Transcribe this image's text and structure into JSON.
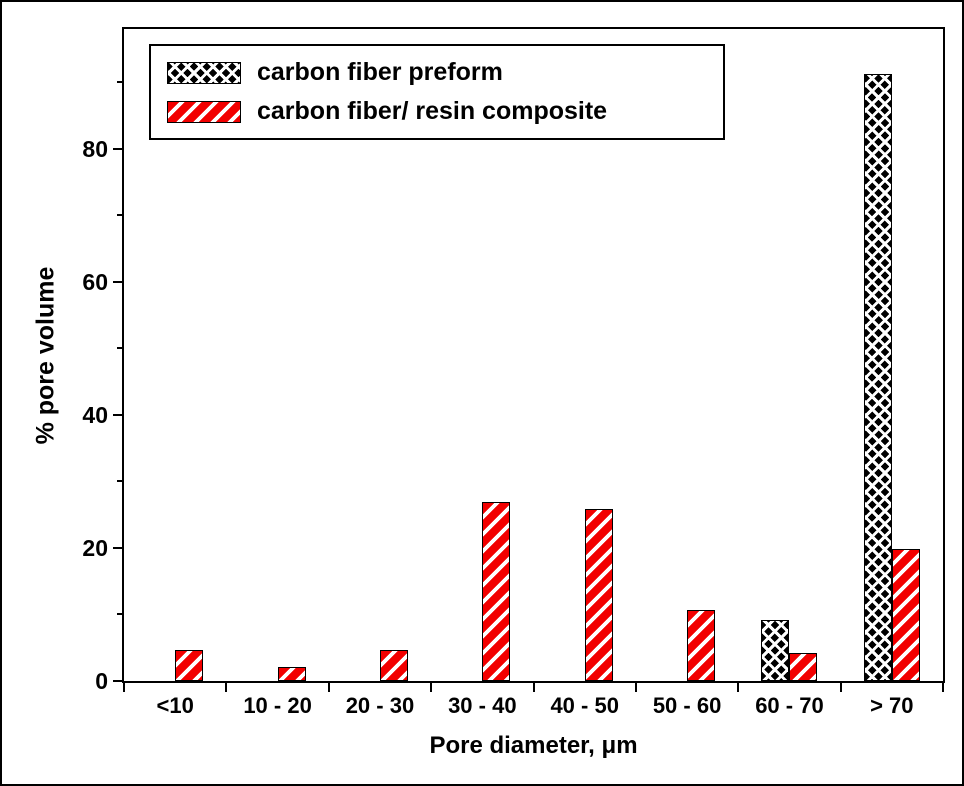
{
  "chart_data": {
    "type": "bar",
    "title": "",
    "xlabel": "Pore diameter, μm",
    "ylabel": "% pore volume",
    "categories": [
      "<10",
      "10 - 20",
      "20 - 30",
      "30 - 40",
      "40 - 50",
      "50 - 60",
      "60 - 70",
      "> 70"
    ],
    "series": [
      {
        "name": "carbon fiber preform",
        "color": "#000000",
        "hatch": "crosshatch",
        "values": [
          0,
          0,
          0,
          0,
          0,
          0,
          9.2,
          91.3
        ]
      },
      {
        "name": "carbon fiber/ resin composite",
        "color": "#f20000",
        "hatch": "diagonal",
        "values": [
          4.6,
          2.1,
          4.6,
          26.9,
          25.9,
          10.7,
          4.2,
          19.8
        ]
      }
    ],
    "ylim": [
      0,
      98
    ],
    "yticks": [
      0,
      20,
      40,
      60,
      80
    ],
    "y_minor_ticks": [
      10,
      30,
      50,
      70,
      90
    ],
    "legend_position": "top-left",
    "grid": false
  }
}
